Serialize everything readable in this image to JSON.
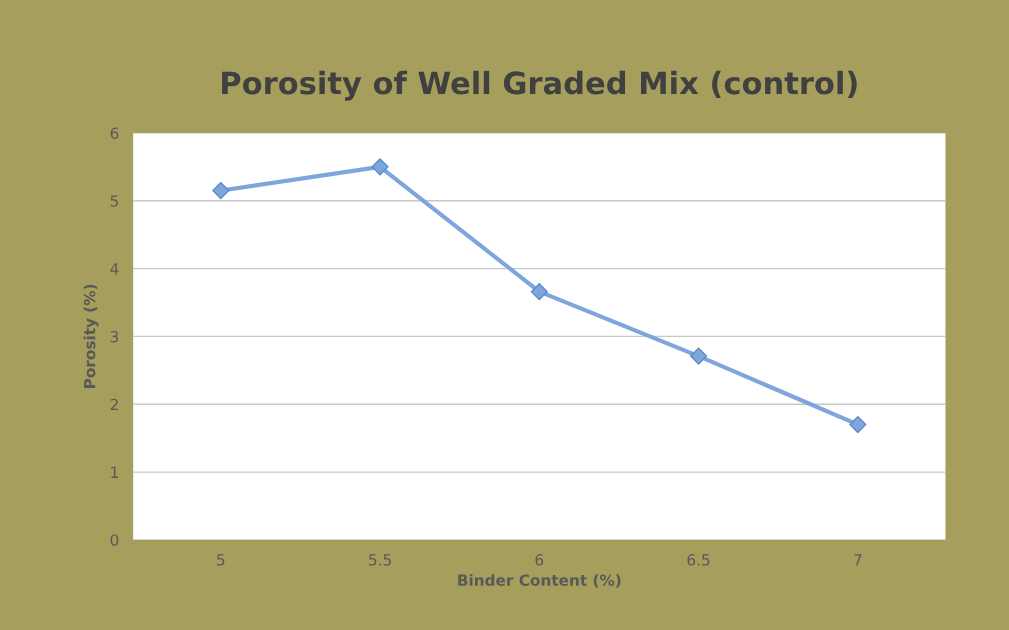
{
  "chart_data": {
    "type": "line",
    "title": "Porosity of Well Graded Mix (control)",
    "xlabel": "Binder Content (%)",
    "ylabel": "Porosity (%)",
    "categories": [
      "5",
      "5.5",
      "6",
      "6.5",
      "7"
    ],
    "series": [
      {
        "color": "#7fa6dc",
        "values": [
          5.15,
          5.5,
          3.66,
          2.71,
          1.7
        ]
      }
    ],
    "ylim": [
      0,
      6
    ],
    "yticks": [
      0,
      1,
      2,
      3,
      4,
      5,
      6
    ],
    "grid": "y",
    "marker": "diamond",
    "line_style": "solid",
    "legend": false
  }
}
